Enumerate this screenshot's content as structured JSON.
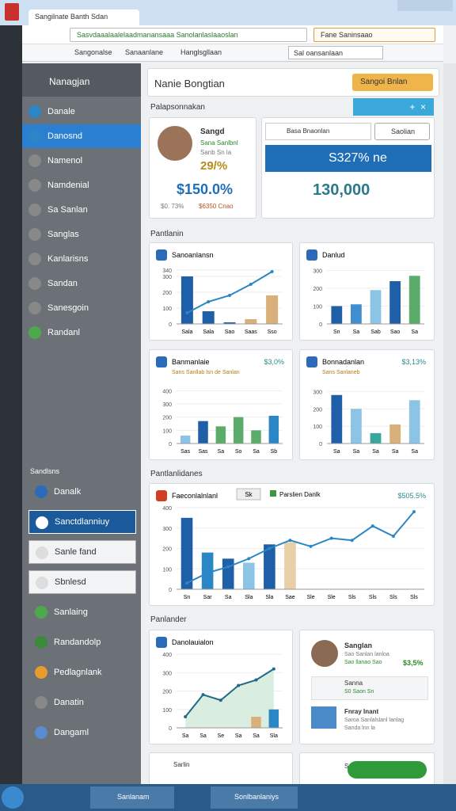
{
  "browser": {
    "tab": "Sangilnate Banth Sdan",
    "address": "Sasvdaaalaalelaadmanansaaa Sanolanlaslaaoslan",
    "search": "Fane Saninsaao",
    "bookmarks": [
      "Sangonalse",
      "Sanaanlane",
      "Hanglsgllaan"
    ],
    "bookmark_search": "Sal oansanlaan"
  },
  "sidebar": {
    "title": "Nanagjan",
    "items": [
      {
        "label": "Danale"
      },
      {
        "label": "Danosnd",
        "active": true
      },
      {
        "label": "Namenol"
      },
      {
        "label": "Namdenial"
      },
      {
        "label": "Sa Sanlan"
      },
      {
        "label": "Sanglas"
      },
      {
        "label": "Kanlarisns"
      },
      {
        "label": "Sandan"
      },
      {
        "label": "Sanesgoin"
      },
      {
        "label": "Randanl"
      }
    ],
    "section": "Sandlsns",
    "items2": [
      {
        "label": "Danalk"
      },
      {
        "label": "Sanctdlanniuy",
        "active": true
      },
      {
        "label": "Sanle fand"
      },
      {
        "label": "Sbnlesd"
      },
      {
        "label": "Sanlaing"
      },
      {
        "label": "Randandolp"
      },
      {
        "label": "Pedlagnlank"
      },
      {
        "label": "Danatin"
      },
      {
        "label": "Dangaml"
      }
    ]
  },
  "header": {
    "title": "Nanie Bongtian",
    "button": "Sangoi Bnlan"
  },
  "sections": [
    "Palapsonnakan",
    "Pantlanin",
    "Pantlanlidanes",
    "Panlander"
  ],
  "profile": {
    "name": "Sangd",
    "line1": "Sana Sanlbnl",
    "line2": "Sanb Sn la",
    "percent": "29/%",
    "value": "$150.0%",
    "foot1": "$0. 73%",
    "foot2": "$6350 Cnao"
  },
  "summary": {
    "search": "Basa Bnaonlan",
    "button": "Saolian",
    "highlight": "S327% ne",
    "total": "130,000"
  },
  "charts": [
    {
      "title": "Sanoanlansn",
      "categories": [
        "Sala",
        "Sala",
        "Sao",
        "Saas",
        "Sso"
      ],
      "bars": [
        300,
        80,
        10,
        30,
        180
      ],
      "bar_colors": [
        "#1f5fa8",
        "#1f5fa8",
        "#1f5fa8",
        "#d9b07a",
        "#d9b07a"
      ],
      "line": [
        70,
        140,
        180,
        250,
        330
      ],
      "line_color": "#2a86c4",
      "ylim": [
        0,
        360
      ],
      "yticks": [
        0,
        100,
        200,
        300,
        340
      ]
    },
    {
      "title": "Danlud",
      "categories": [
        "Sn",
        "Sa",
        "Sab",
        "Sao",
        "Sa"
      ],
      "bars": [
        100,
        110,
        190,
        240,
        270
      ],
      "bar_colors": [
        "#1f5fa8",
        "#3f8fd0",
        "#8cc4e6",
        "#1f5fa8",
        "#5bab6a"
      ],
      "ylim": [
        0,
        320
      ],
      "yticks": [
        0,
        100,
        200,
        300
      ]
    },
    {
      "title": "Banmanlaie",
      "subtitle": "Sans Sanllab lsn de Sanlan",
      "value": "$3,0%",
      "categories": [
        "Sas",
        "Sas",
        "Sa",
        "So",
        "Sa",
        "Sb"
      ],
      "bars": [
        60,
        170,
        130,
        200,
        100,
        210
      ],
      "bar_colors": [
        "#8cc4e6",
        "#1f5fa8",
        "#5bab6a",
        "#5bab6a",
        "#5bab6a",
        "#2a86c4"
      ],
      "ylim": [
        0,
        420
      ],
      "yticks": [
        0,
        100,
        200,
        300,
        400
      ]
    },
    {
      "title": "Bonnadanlan",
      "subtitle": "Sans Sanlaneb",
      "value": "$3,13%",
      "categories": [
        "Sa",
        "Sa",
        "Sa",
        "Sa",
        "Sa"
      ],
      "bars": [
        280,
        200,
        60,
        110,
        250
      ],
      "bar_colors": [
        "#1f5fa8",
        "#8cc4e6",
        "#3aa5a0",
        "#d9b07a",
        "#8cc4e6"
      ],
      "ylim": [
        0,
        320
      ],
      "yticks": [
        0,
        100,
        200,
        300
      ]
    },
    {
      "title": "Faeconlalnlanl",
      "pill": "Sk",
      "legend": "Parslien Danlk",
      "value": "$505.5%",
      "categories": [
        "Sn",
        "Sar",
        "Sa",
        "Sla",
        "Sla",
        "Sae",
        "Sle",
        "Sle",
        "Sls",
        "Sls",
        "Sls",
        "Sls"
      ],
      "bars": [
        350,
        180,
        150,
        130,
        220,
        230,
        null,
        null,
        null,
        null,
        null,
        null
      ],
      "bar_colors": [
        "#1f5fa8",
        "#2a86c4",
        "#1f5fa8",
        "#8cc4e6",
        "#1f5fa8",
        "#e8cfa8",
        "#1f5fa8",
        "#1f5fa8",
        "#1f5fa8",
        "#1f5fa8",
        "#1f5fa8",
        "#1f5fa8"
      ],
      "line": [
        30,
        80,
        110,
        150,
        200,
        240,
        210,
        250,
        240,
        310,
        260,
        380
      ],
      "line_color": "#2a86c4",
      "ylim": [
        0,
        400
      ],
      "yticks": [
        0,
        100,
        200,
        300,
        400
      ]
    },
    {
      "title": "Danolauialon",
      "area": true,
      "categories": [
        "Sa",
        "Sa",
        "Se",
        "Sa",
        "Sa",
        "Sla"
      ],
      "bars": [
        null,
        null,
        null,
        null,
        60,
        100
      ],
      "bar_colors": [
        "#d9b07a",
        "#d9b07a",
        "#d9b07a",
        "#d9b07a",
        "#d9b07a",
        "#2a86c4"
      ],
      "line": [
        60,
        180,
        150,
        230,
        260,
        320
      ],
      "line_color": "#1f6a8a",
      "ylim": [
        0,
        400
      ],
      "yticks": [
        0,
        100,
        200,
        300,
        400
      ]
    }
  ],
  "person": {
    "name": "Sanglan",
    "line1": "Sao Sanlan lanloa",
    "line2": "Sao llanao Sao",
    "value": "$3,5%",
    "item1": "Sanna",
    "item1b": "S0 Saon Sn",
    "item2": "Fnray Inant",
    "item2b": "Saroa Sanlalslanl lanlag",
    "item2c": "Sanda lnn la"
  },
  "bottom": {
    "card1": "Sarlin",
    "card2": "Sanllan"
  },
  "taskbar": {
    "windows": [
      "Sanlanam",
      "Sonlbanlaniys"
    ]
  }
}
